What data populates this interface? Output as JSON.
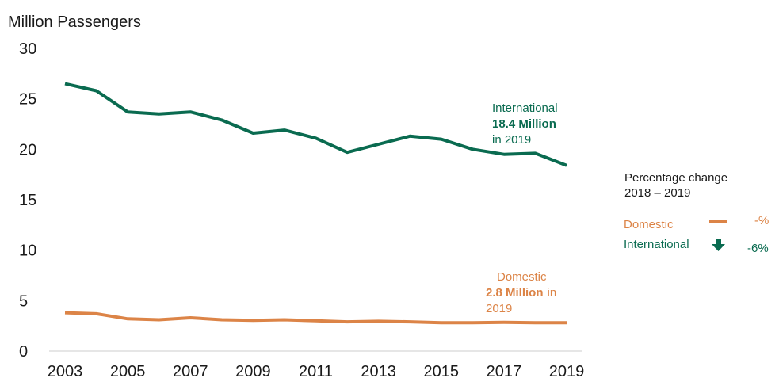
{
  "colors": {
    "international": "#0a6b50",
    "domestic": "#dc8447",
    "text": "#1a1a1a",
    "axis": "#cccccc"
  },
  "chart_data": {
    "type": "line",
    "ylabel": "Million Passengers",
    "ylim": [
      0,
      30
    ],
    "yticks": [
      "0",
      "5",
      "10",
      "15",
      "20",
      "25",
      "30"
    ],
    "xlim": [
      2003,
      2019
    ],
    "xticks": [
      "2003",
      "2005",
      "2007",
      "2009",
      "2011",
      "2013",
      "2015",
      "2017",
      "2019"
    ],
    "grid": false,
    "x": [
      2003,
      2004,
      2005,
      2006,
      2007,
      2008,
      2009,
      2010,
      2011,
      2012,
      2013,
      2014,
      2015,
      2016,
      2017,
      2018,
      2019
    ],
    "series": [
      {
        "name": "International",
        "values": [
          26.5,
          25.8,
          23.7,
          23.5,
          23.7,
          22.9,
          21.6,
          21.9,
          21.1,
          19.7,
          20.5,
          21.3,
          21.0,
          20.0,
          19.5,
          19.6,
          18.4
        ]
      },
      {
        "name": "Domestic",
        "values": [
          3.8,
          3.7,
          3.2,
          3.1,
          3.3,
          3.1,
          3.05,
          3.1,
          3.0,
          2.9,
          2.95,
          2.9,
          2.8,
          2.8,
          2.85,
          2.8,
          2.8
        ]
      }
    ],
    "annotations": {
      "international": {
        "line1": "International",
        "value": "18.4 Million",
        "line3": "in 2019"
      },
      "domestic": {
        "line1": "Domestic",
        "value": "2.8 Million",
        "in": "in",
        "line3": "2019"
      }
    },
    "legend": {
      "title1": "Percentage change",
      "title2": "2018 – 2019",
      "position": "right",
      "rows": [
        {
          "name": "Domestic",
          "change": "-%",
          "symbol": "dash-icon"
        },
        {
          "name": "International",
          "change": "-6%",
          "symbol": "down-arrow-icon"
        }
      ]
    }
  }
}
